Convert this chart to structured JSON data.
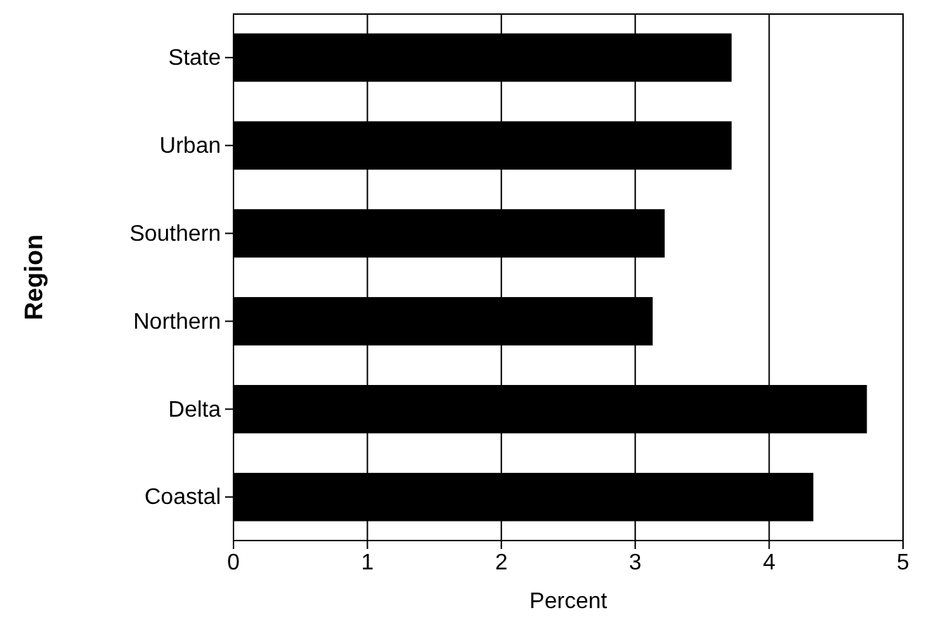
{
  "chart_data": {
    "type": "bar",
    "orientation": "horizontal",
    "xlabel": "Percent",
    "ylabel": "Region",
    "categories": [
      "State",
      "Urban",
      "Southern",
      "Northern",
      "Delta",
      "Coastal"
    ],
    "values": [
      3.72,
      3.72,
      3.22,
      3.13,
      4.73,
      4.33
    ],
    "color": "#000000",
    "xlim": [
      0,
      5
    ],
    "xticks": [
      0,
      1,
      2,
      3,
      4,
      5
    ],
    "grid": "x"
  }
}
